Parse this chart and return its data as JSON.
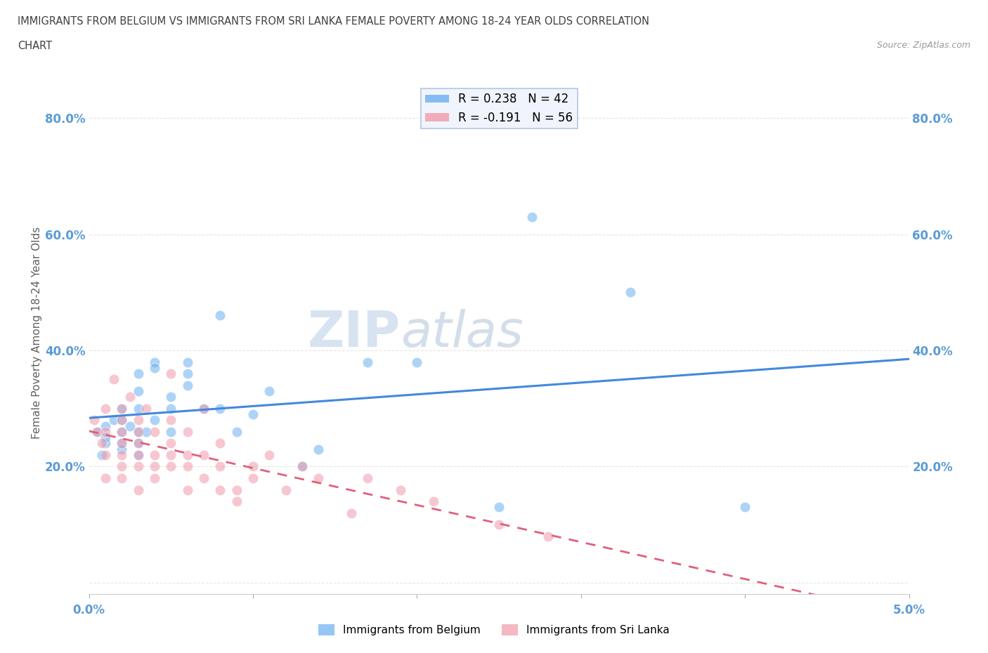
{
  "title_line1": "IMMIGRANTS FROM BELGIUM VS IMMIGRANTS FROM SRI LANKA FEMALE POVERTY AMONG 18-24 YEAR OLDS CORRELATION",
  "title_line2": "CHART",
  "source": "Source: ZipAtlas.com",
  "ylabel": "Female Poverty Among 18-24 Year Olds",
  "xlim": [
    0.0,
    0.05
  ],
  "ylim": [
    -0.02,
    0.88
  ],
  "xticks": [
    0.0,
    0.01,
    0.02,
    0.03,
    0.04,
    0.05
  ],
  "xticklabels": [
    "0.0%",
    "",
    "",
    "",
    "",
    "5.0%"
  ],
  "ytick_positions": [
    0.0,
    0.2,
    0.4,
    0.6,
    0.8
  ],
  "yticklabels_left": [
    "",
    "20.0%",
    "40.0%",
    "60.0%",
    "80.0%"
  ],
  "yticklabels_right": [
    "",
    "20.0%",
    "40.0%",
    "60.0%",
    "80.0%"
  ],
  "belgium_color": "#6ab0f0",
  "sri_lanka_color": "#f09aaa",
  "belgium_line_color": "#4488dd",
  "sri_lanka_line_color": "#e0607a",
  "belgium_R": 0.238,
  "belgium_N": 42,
  "sri_lanka_R": -0.191,
  "sri_lanka_N": 56,
  "watermark_zip": "ZIP",
  "watermark_atlas": "atlas",
  "belgium_scatter_x": [
    0.0005,
    0.0008,
    0.001,
    0.001,
    0.001,
    0.0015,
    0.002,
    0.002,
    0.002,
    0.002,
    0.002,
    0.0025,
    0.003,
    0.003,
    0.003,
    0.003,
    0.003,
    0.003,
    0.0035,
    0.004,
    0.004,
    0.004,
    0.005,
    0.005,
    0.005,
    0.006,
    0.006,
    0.006,
    0.007,
    0.008,
    0.008,
    0.009,
    0.01,
    0.011,
    0.013,
    0.014,
    0.017,
    0.02,
    0.025,
    0.027,
    0.033,
    0.04
  ],
  "belgium_scatter_y": [
    0.26,
    0.22,
    0.24,
    0.27,
    0.25,
    0.28,
    0.26,
    0.3,
    0.24,
    0.28,
    0.23,
    0.27,
    0.22,
    0.3,
    0.26,
    0.24,
    0.36,
    0.33,
    0.26,
    0.28,
    0.38,
    0.37,
    0.3,
    0.32,
    0.26,
    0.38,
    0.36,
    0.34,
    0.3,
    0.46,
    0.3,
    0.26,
    0.29,
    0.33,
    0.2,
    0.23,
    0.38,
    0.38,
    0.13,
    0.63,
    0.5,
    0.13
  ],
  "sri_lanka_scatter_x": [
    0.0003,
    0.0005,
    0.0008,
    0.001,
    0.001,
    0.001,
    0.001,
    0.0015,
    0.002,
    0.002,
    0.002,
    0.002,
    0.002,
    0.002,
    0.002,
    0.0025,
    0.003,
    0.003,
    0.003,
    0.003,
    0.003,
    0.003,
    0.0035,
    0.004,
    0.004,
    0.004,
    0.004,
    0.005,
    0.005,
    0.005,
    0.005,
    0.005,
    0.006,
    0.006,
    0.006,
    0.006,
    0.007,
    0.007,
    0.007,
    0.008,
    0.008,
    0.008,
    0.009,
    0.009,
    0.01,
    0.01,
    0.011,
    0.012,
    0.013,
    0.014,
    0.016,
    0.017,
    0.019,
    0.021,
    0.025,
    0.028
  ],
  "sri_lanka_scatter_y": [
    0.28,
    0.26,
    0.24,
    0.26,
    0.3,
    0.22,
    0.18,
    0.35,
    0.28,
    0.26,
    0.24,
    0.3,
    0.22,
    0.2,
    0.18,
    0.32,
    0.28,
    0.24,
    0.26,
    0.2,
    0.22,
    0.16,
    0.3,
    0.26,
    0.22,
    0.2,
    0.18,
    0.36,
    0.28,
    0.24,
    0.22,
    0.2,
    0.26,
    0.22,
    0.2,
    0.16,
    0.3,
    0.22,
    0.18,
    0.24,
    0.2,
    0.16,
    0.16,
    0.14,
    0.2,
    0.18,
    0.22,
    0.16,
    0.2,
    0.18,
    0.12,
    0.18,
    0.16,
    0.14,
    0.1,
    0.08
  ],
  "background_color": "#ffffff",
  "grid_color": "#e0e0e0",
  "tick_label_color": "#5b9bd5",
  "title_color": "#404040",
  "axis_label_color": "#606060",
  "legend_bg": "#f0f4fc",
  "legend_edge": "#b0c4e0"
}
